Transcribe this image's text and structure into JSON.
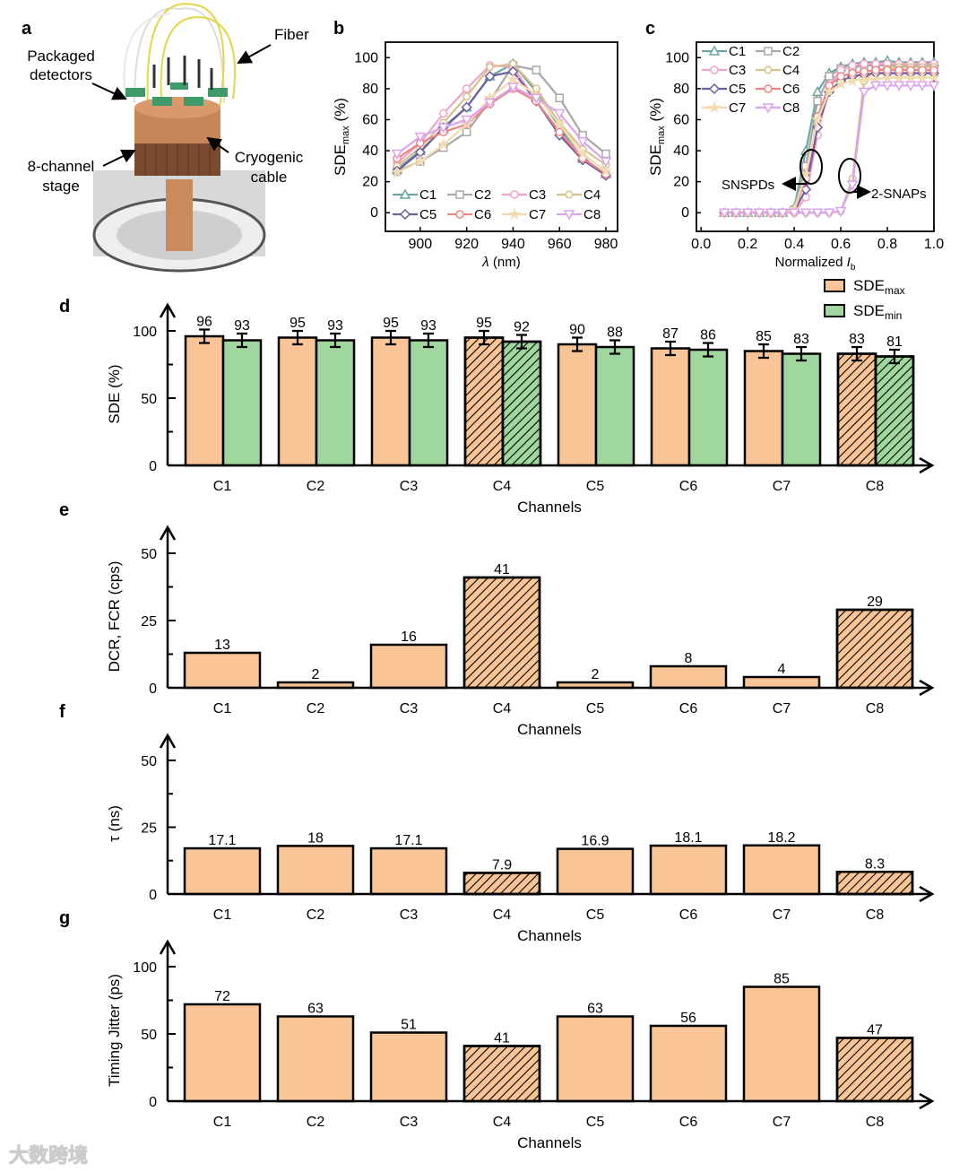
{
  "panel_labels": {
    "a": "a",
    "b": "b",
    "c": "c",
    "d": "d",
    "e": "e",
    "f": "f",
    "g": "g"
  },
  "panel_a": {
    "fiber": "Fiber",
    "packaged_detectors": [
      "Packaged",
      "detectors"
    ],
    "stage": [
      "8-channel",
      "stage"
    ],
    "cable": [
      "Cryogenic",
      "cable"
    ]
  },
  "watermark": "大数跨境",
  "colors": {
    "orange": "#f9c597",
    "green": "#9fd79f",
    "C1": "#6aa7a2",
    "C2": "#a8a8a8",
    "C3": "#f2a3cb",
    "C4": "#d6c18d",
    "C5": "#6d5e9e",
    "C6": "#ee8585",
    "C7": "#f1dcb2",
    "C8": "#dba3ee"
  },
  "chart_data": [
    {
      "id": "b",
      "type": "line",
      "xlabel_symbol": "λ",
      "xlabel_unit": " (nm)",
      "ylabel": "SDE",
      "ylabel_sub": "max",
      "ylabel_unit": " (%)",
      "xlim": [
        885,
        985
      ],
      "ylim": [
        -12,
        110
      ],
      "xticks": [
        900,
        920,
        940,
        960,
        980
      ],
      "yticks": [
        0,
        20,
        40,
        60,
        80,
        100
      ],
      "legend": "bottom",
      "x": [
        890,
        900,
        910,
        920,
        930,
        940,
        950,
        960,
        970,
        980
      ],
      "series": [
        {
          "name": "C1",
          "marker": "triangle",
          "values": [
            28,
            40,
            54,
            68,
            88,
            96,
            78,
            55,
            35,
            25
          ]
        },
        {
          "name": "C2",
          "marker": "square",
          "values": [
            27,
            33,
            42,
            52,
            72,
            95,
            92,
            74,
            50,
            38
          ]
        },
        {
          "name": "C3",
          "marker": "circle",
          "values": [
            32,
            45,
            64,
            80,
            95,
            94,
            72,
            52,
            36,
            24
          ]
        },
        {
          "name": "C4",
          "marker": "hexagon",
          "values": [
            30,
            42,
            58,
            75,
            94,
            96,
            80,
            58,
            41,
            31
          ]
        },
        {
          "name": "C5",
          "marker": "diamond",
          "values": [
            27,
            39,
            55,
            68,
            88,
            91,
            72,
            50,
            34,
            24
          ]
        },
        {
          "name": "C6",
          "marker": "circle",
          "values": [
            35,
            45,
            52,
            57,
            70,
            80,
            72,
            52,
            35,
            25
          ]
        },
        {
          "name": "C7",
          "marker": "star",
          "values": [
            26,
            33,
            44,
            57,
            74,
            86,
            76,
            57,
            38,
            27
          ]
        },
        {
          "name": "C8",
          "marker": "down-triangle",
          "values": [
            38,
            49,
            55,
            60,
            71,
            81,
            74,
            64,
            46,
            33
          ]
        }
      ]
    },
    {
      "id": "c",
      "type": "line",
      "xlabel": "Normalized ",
      "xlabel_symbol": "I",
      "xlabel_sub": "b",
      "ylabel": "SDE",
      "ylabel_sub": "max",
      "ylabel_unit": " (%)",
      "xlim": [
        -0.02,
        1.0
      ],
      "ylim": [
        -12,
        110
      ],
      "xticks": [
        0.0,
        0.2,
        0.4,
        0.6,
        0.8,
        1.0
      ],
      "xtick_labels": [
        "0.0",
        "0.2",
        "0.4",
        "0.6",
        "0.8",
        "1.0"
      ],
      "yticks": [
        0,
        20,
        40,
        60,
        80,
        100
      ],
      "legend": "top-left",
      "annotations": {
        "snspd": "SNSPDs",
        "snap": "2-SNAPs"
      },
      "x": [
        0.1,
        0.15,
        0.2,
        0.25,
        0.3,
        0.35,
        0.4,
        0.45,
        0.5,
        0.55,
        0.6,
        0.65,
        0.7,
        0.75,
        0.8,
        0.85,
        0.9,
        0.95,
        1.0
      ],
      "series": [
        {
          "name": "C1",
          "marker": "triangle",
          "values": [
            0,
            0,
            0,
            0,
            0,
            0,
            3,
            40,
            78,
            90,
            94,
            96,
            97,
            97,
            98,
            97,
            97,
            97,
            97
          ]
        },
        {
          "name": "C2",
          "marker": "square",
          "values": [
            0,
            0,
            0,
            0,
            0,
            0,
            2,
            30,
            72,
            88,
            93,
            94,
            95,
            95,
            95,
            95,
            95,
            95,
            95
          ]
        },
        {
          "name": "C3",
          "marker": "circle",
          "values": [
            0,
            0,
            0,
            0,
            0,
            0,
            0,
            10,
            50,
            82,
            92,
            95,
            96,
            96,
            96,
            96,
            96,
            96,
            96
          ]
        },
        {
          "name": "C4",
          "marker": "hexagon",
          "values": [
            0,
            0,
            0,
            0,
            0,
            0,
            0,
            0,
            0,
            0,
            1,
            22,
            85,
            92,
            93,
            94,
            94,
            94,
            94
          ]
        },
        {
          "name": "C5",
          "marker": "diamond",
          "values": [
            0,
            0,
            0,
            0,
            0,
            0,
            1,
            15,
            55,
            78,
            85,
            88,
            89,
            90,
            90,
            90,
            90,
            90,
            90
          ]
        },
        {
          "name": "C6",
          "marker": "circle",
          "values": [
            0,
            0,
            0,
            0,
            0,
            0,
            1,
            22,
            62,
            82,
            88,
            90,
            91,
            92,
            92,
            92,
            92,
            92,
            92
          ]
        },
        {
          "name": "C7",
          "marker": "star",
          "values": [
            0,
            0,
            0,
            0,
            0,
            0,
            2,
            25,
            60,
            78,
            83,
            85,
            86,
            86,
            87,
            87,
            87,
            87,
            87
          ]
        },
        {
          "name": "C8",
          "marker": "down-triangle",
          "values": [
            0,
            0,
            0,
            0,
            0,
            0,
            0,
            0,
            0,
            0,
            1,
            18,
            78,
            82,
            82,
            82,
            82,
            82,
            82
          ]
        }
      ]
    },
    {
      "id": "d",
      "type": "bar",
      "ylabel": "SDE (%)",
      "xlabel": "Channels",
      "ylim": [
        0,
        120
      ],
      "yticks": [
        0,
        50,
        100
      ],
      "categories": [
        "C1",
        "C2",
        "C3",
        "C4",
        "C5",
        "C6",
        "C7",
        "C8"
      ],
      "hatched": [
        "C4",
        "C8"
      ],
      "legend": "top-right",
      "error": 5,
      "series": [
        {
          "name": "SDE",
          "sub": "max",
          "color": "orange",
          "values": [
            96,
            95,
            95,
            95,
            90,
            87,
            85,
            83
          ]
        },
        {
          "name": "SDE",
          "sub": "min",
          "color": "green",
          "values": [
            93,
            93,
            93,
            92,
            88,
            86,
            83,
            81
          ]
        }
      ]
    },
    {
      "id": "e",
      "type": "bar",
      "ylabel": "DCR, FCR (cps)",
      "xlabel": "Channels",
      "ylim": [
        0,
        60
      ],
      "yticks": [
        0,
        25,
        50
      ],
      "categories": [
        "C1",
        "C2",
        "C3",
        "C4",
        "C5",
        "C6",
        "C7",
        "C8"
      ],
      "hatched": [
        "C4",
        "C8"
      ],
      "series": [
        {
          "color": "orange",
          "values": [
            13,
            2,
            16,
            41,
            2,
            8,
            4,
            29
          ]
        }
      ]
    },
    {
      "id": "f",
      "type": "bar",
      "ylabel": "τ (ns)",
      "xlabel": "Channels",
      "ylim": [
        0,
        60
      ],
      "yticks": [
        0,
        25,
        50
      ],
      "categories": [
        "C1",
        "C2",
        "C3",
        "C4",
        "C5",
        "C6",
        "C7",
        "C8"
      ],
      "hatched": [
        "C4",
        "C8"
      ],
      "series": [
        {
          "color": "orange",
          "values": [
            17.1,
            18,
            17.1,
            7.9,
            16.9,
            18.1,
            18.2,
            8.3
          ]
        }
      ]
    },
    {
      "id": "g",
      "type": "bar",
      "ylabel": "Timing Jitter (ps)",
      "xlabel": "Channels",
      "ylim": [
        0,
        120
      ],
      "yticks": [
        0,
        50,
        100
      ],
      "categories": [
        "C1",
        "C2",
        "C3",
        "C4",
        "C5",
        "C6",
        "C7",
        "C8"
      ],
      "hatched": [
        "C4",
        "C8"
      ],
      "series": [
        {
          "color": "orange",
          "values": [
            72,
            63,
            51,
            41,
            63,
            56,
            85,
            47
          ]
        }
      ]
    }
  ]
}
